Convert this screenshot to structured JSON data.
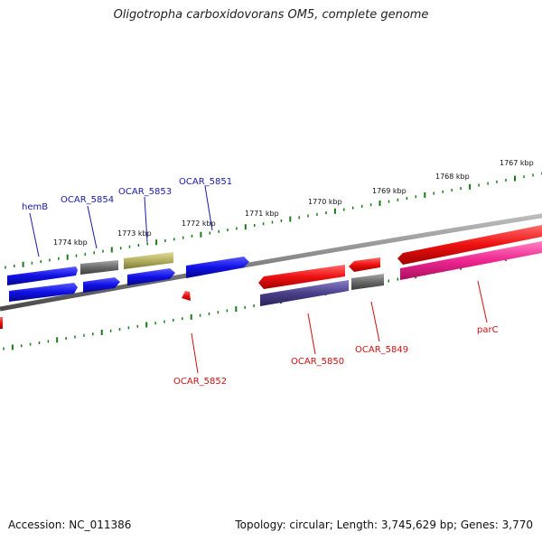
{
  "title": "Oligotropha carboxidovorans OM5, complete genome",
  "footer": {
    "accession": "Accession: NC_011386",
    "topology": "Topology: circular; Length: 3,745,629 bp; Genes: 3,770"
  },
  "colors": {
    "backbone": "#858585",
    "tick": "#1a7a1a",
    "blue_gene": "#1010e6",
    "gray_gene": "#6a6a6a",
    "olive_gene": "#b4b060",
    "red_gene": "#ee1010",
    "purple_gene": "#4a3f8a",
    "pink_gene": "#ee2590",
    "top_label": "#1a1aaa",
    "bottom_label": "#cc1010"
  },
  "kbp_labels": [
    "1774 kbp",
    "1773 kbp",
    "1772 kbp",
    "1771 kbp",
    "1770 kbp",
    "1769 kbp",
    "1768 kbp",
    "1767 kbp"
  ],
  "gene_labels_top": [
    "hemB",
    "OCAR_5854",
    "OCAR_5853",
    "OCAR_5851"
  ],
  "gene_labels_bottom": [
    "OCAR_5852",
    "OCAR_5850",
    "OCAR_5849",
    "parC"
  ]
}
